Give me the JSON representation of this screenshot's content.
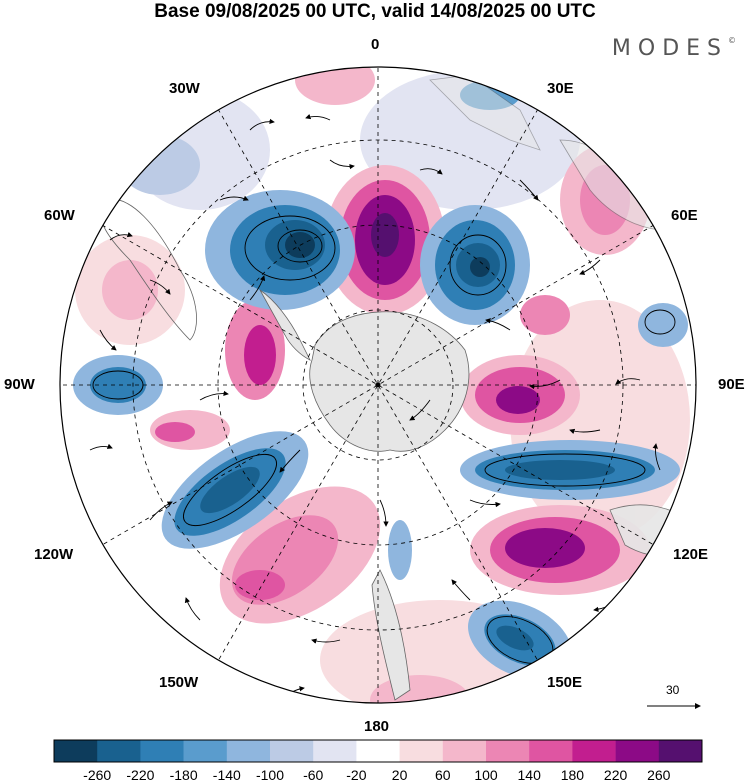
{
  "title": "Base 09/08/2025 00 UTC, valid 14/08/2025 00 UTC",
  "brand": "MODES",
  "brand_mark": "©",
  "longitude_labels": {
    "lon_0": "0",
    "lon_30e": "30E",
    "lon_60e": "60E",
    "lon_90e": "90E",
    "lon_120e": "120E",
    "lon_150e": "150E",
    "lon_180": "180",
    "lon_150w": "150W",
    "lon_120w": "120W",
    "lon_90w": "90W",
    "lon_60w": "60W",
    "lon_30w": "30W"
  },
  "vector_scale_label": "30",
  "colorbar": {
    "labels": [
      "-260",
      "-220",
      "-180",
      "-140",
      "-100",
      "-60",
      "-20",
      "20",
      "60",
      "100",
      "140",
      "180",
      "220",
      "260"
    ],
    "colors": [
      "#0d3c5c",
      "#19618f",
      "#2f7fb5",
      "#5a9ccd",
      "#8fb6de",
      "#bccbe5",
      "#e2e4f2",
      "#ffffff",
      "#f8dde0",
      "#f4b7cb",
      "#ec86b4",
      "#df55a2",
      "#c21e8f",
      "#8c0a86",
      "#55106f"
    ]
  },
  "colors": {
    "land": "#e6e6e6",
    "anomaly_negative": "#2f7fb5",
    "anomaly_positive": "#c21e8f"
  }
}
